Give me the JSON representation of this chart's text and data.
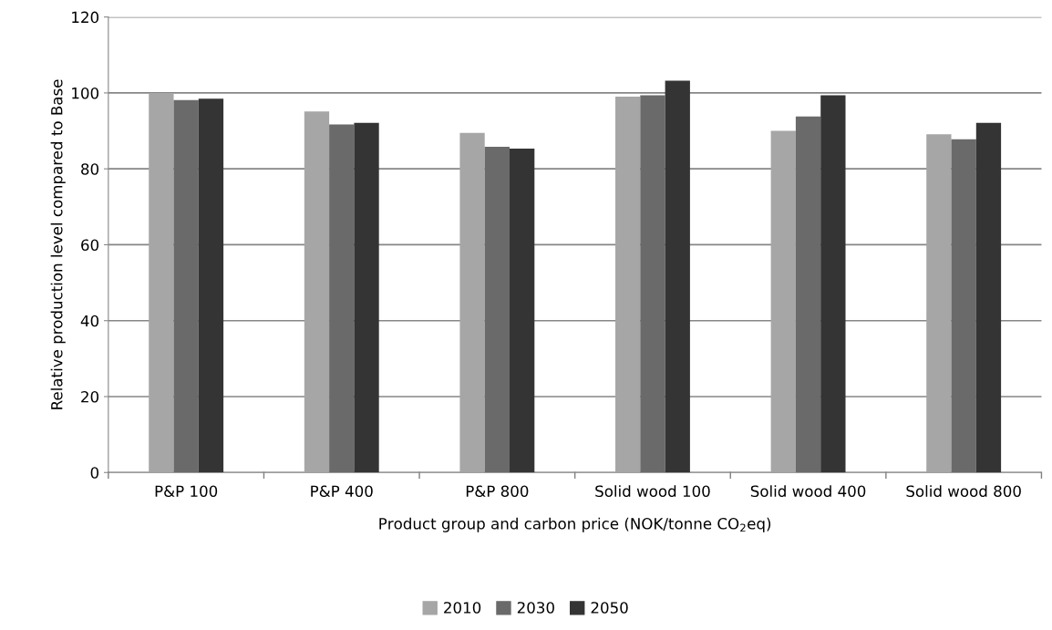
{
  "chart_data": {
    "type": "bar",
    "xlabel": "Product group and carbon price (NOK/tonne CO$_{2}$eq)",
    "ylabel": "Relative production level compared to Base",
    "categories": [
      "P&P 100",
      "P&P 400",
      "P&P 800",
      "Solid wood 100",
      "Solid wood 400",
      "Solid wood 800"
    ],
    "series": [
      {
        "name": "2010",
        "color": "#a6a6a6",
        "values": [
          99.8,
          95.1,
          89.5,
          99.0,
          90.0,
          89.1
        ]
      },
      {
        "name": "2030",
        "color": "#6a6a6a",
        "values": [
          98.1,
          91.7,
          85.8,
          99.4,
          93.8,
          87.8
        ]
      },
      {
        "name": "2050",
        "color": "#343434",
        "values": [
          98.5,
          92.1,
          85.3,
          103.2,
          99.4,
          92.1
        ]
      }
    ],
    "ylim": [
      0,
      120
    ],
    "yticks": [
      0,
      20,
      40,
      60,
      80,
      100,
      120
    ],
    "grid": "y",
    "legend": "bottom"
  }
}
